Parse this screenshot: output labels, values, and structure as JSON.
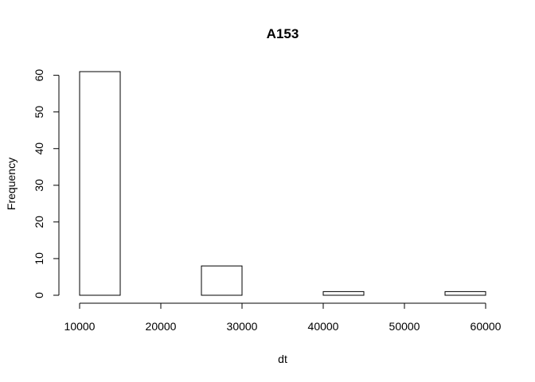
{
  "chart_data": {
    "type": "bar",
    "subtype": "histogram",
    "title": "A153",
    "xlabel": "dt",
    "ylabel": "Frequency",
    "bins": [
      {
        "start": 10000,
        "end": 15000,
        "count": 61
      },
      {
        "start": 15000,
        "end": 20000,
        "count": 0
      },
      {
        "start": 20000,
        "end": 25000,
        "count": 0
      },
      {
        "start": 25000,
        "end": 30000,
        "count": 8
      },
      {
        "start": 30000,
        "end": 35000,
        "count": 0
      },
      {
        "start": 35000,
        "end": 40000,
        "count": 0
      },
      {
        "start": 40000,
        "end": 45000,
        "count": 1
      },
      {
        "start": 45000,
        "end": 50000,
        "count": 0
      },
      {
        "start": 50000,
        "end": 55000,
        "count": 0
      },
      {
        "start": 55000,
        "end": 60000,
        "count": 1
      }
    ],
    "xlim": [
      10000,
      60000
    ],
    "ylim": [
      0,
      61
    ],
    "xticks": [
      "10000",
      "20000",
      "30000",
      "40000",
      "50000",
      "60000"
    ],
    "yticks": [
      "0",
      "10",
      "20",
      "30",
      "40",
      "50",
      "60"
    ],
    "grid": false,
    "legend": "none",
    "colors": {
      "bar_fill": "#ffffff",
      "bar_stroke": "#000000"
    }
  }
}
